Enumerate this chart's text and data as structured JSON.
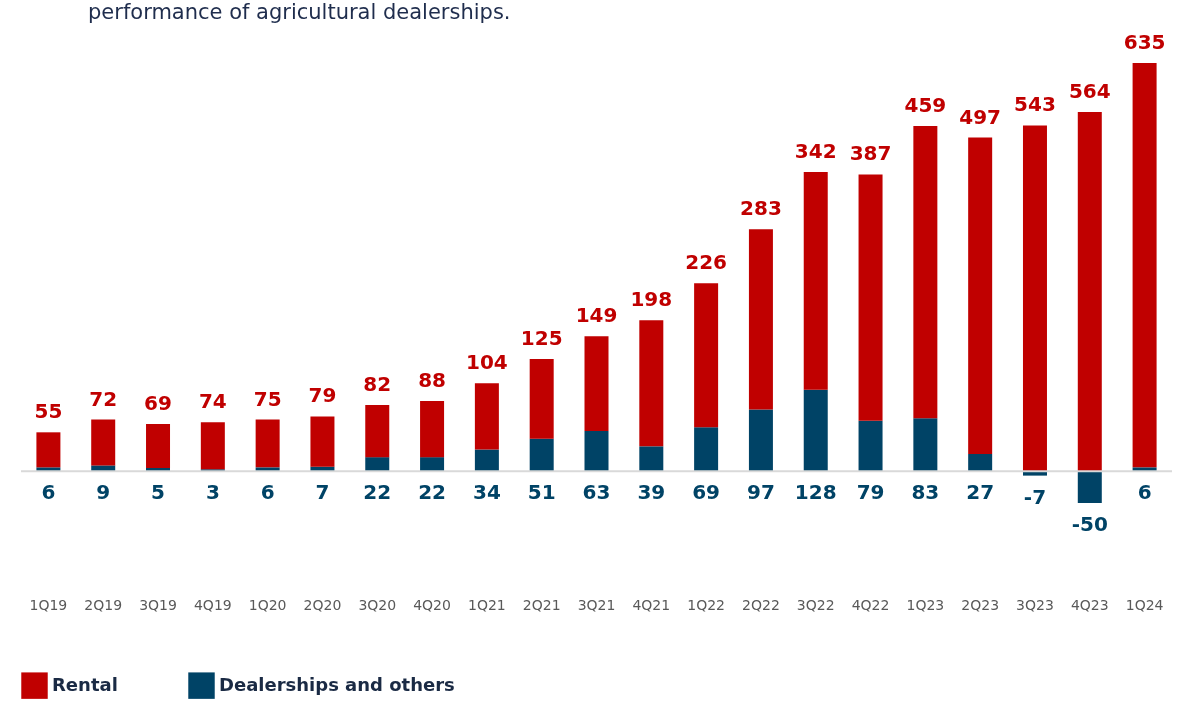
{
  "chart_data": {
    "type": "bar",
    "subtitle": "performance of agricultural dealerships.",
    "categories": [
      "1Q19",
      "2Q19",
      "3Q19",
      "4Q19",
      "1Q20",
      "2Q20",
      "3Q20",
      "4Q20",
      "1Q21",
      "2Q21",
      "3Q21",
      "4Q21",
      "1Q22",
      "2Q22",
      "3Q22",
      "4Q22",
      "1Q23",
      "2Q23",
      "3Q23",
      "4Q23",
      "1Q24"
    ],
    "stacked": true,
    "data_labels": true,
    "legend": "bottom",
    "series": [
      {
        "name": "Dealerships and others",
        "color": "#004366",
        "values": [
          6,
          9,
          5,
          3,
          6,
          7,
          22,
          22,
          34,
          51,
          63,
          39,
          69,
          97,
          128,
          79,
          83,
          27,
          -7,
          -50,
          6
        ]
      },
      {
        "name": "Rental",
        "color": "#c00000",
        "values": [
          55,
          72,
          69,
          74,
          75,
          79,
          82,
          88,
          104,
          125,
          149,
          198,
          226,
          283,
          342,
          387,
          459,
          497,
          543,
          564,
          635
        ]
      }
    ]
  }
}
